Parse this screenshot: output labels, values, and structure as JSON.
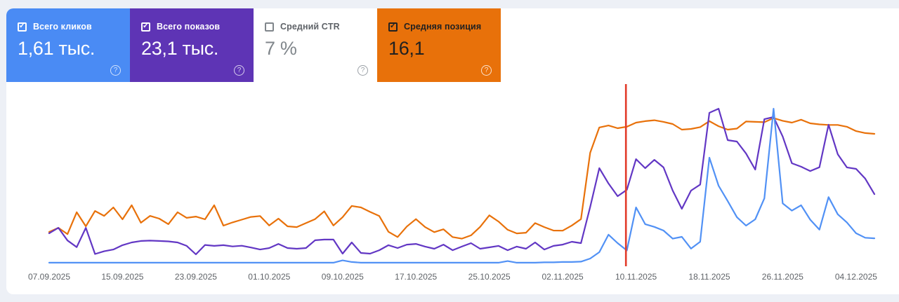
{
  "page": {
    "background": "#edf0f6",
    "panel_background": "#ffffff"
  },
  "icons": {
    "help": "?",
    "check": "✓"
  },
  "cards": [
    {
      "id": "clicks",
      "label": "Всего кликов",
      "value": "1,61 тыс.",
      "checked": true,
      "bg": "#4a8bf4",
      "text": "#ffffff",
      "checkbox_color": "#ffffff",
      "help_color": "rgba(255,255,255,0.75)"
    },
    {
      "id": "impressions",
      "label": "Всего показов",
      "value": "23,1 тыс.",
      "checked": true,
      "bg": "#5e34b5",
      "text": "#ffffff",
      "checkbox_color": "#ffffff",
      "help_color": "rgba(255,255,255,0.75)"
    },
    {
      "id": "ctr",
      "label": "Средний CTR",
      "value": "7 %",
      "checked": false,
      "bg": "#ffffff",
      "text": "#80868b",
      "checkbox_color": "#80868b",
      "help_color": "#9aa0a6",
      "label_color": "#5f6368"
    },
    {
      "id": "position",
      "label": "Средняя позиция",
      "value": "16,1",
      "checked": true,
      "bg": "#e8710a",
      "text": "#212121",
      "checkbox_color": "#212121",
      "help_color": "rgba(255,255,255,0.8)"
    }
  ],
  "chart_data": {
    "type": "line",
    "x_start": "07.09.2025",
    "x_end": "06.12.2025",
    "points_per_series": 91,
    "x_labels": [
      "07.09.2025",
      "15.09.2025",
      "23.09.2025",
      "01.10.2025",
      "09.10.2025",
      "17.10.2025",
      "25.10.2025",
      "02.11.2025",
      "10.11.2025",
      "18.11.2025",
      "26.11.2025",
      "04.12.2025"
    ],
    "y_note": "no y-axis labels visible in UI; values are percent of plot height (0 = bottom, 100 = top)",
    "legend_visible": false,
    "grid": false,
    "series": [
      {
        "name": "Средняя позиция",
        "color": "#e8710a",
        "values": [
          18.2,
          20.5,
          17.0,
          29.1,
          21.3,
          29.8,
          27.1,
          31.8,
          25.2,
          33.0,
          23.3,
          27.1,
          25.6,
          22.5,
          29.1,
          26.0,
          26.7,
          25.2,
          33.0,
          21.7,
          23.5,
          25.0,
          26.5,
          27.0,
          21.8,
          25.6,
          21.3,
          20.9,
          23.1,
          25.3,
          29.6,
          21.8,
          26.4,
          32.6,
          31.8,
          29.3,
          27.0,
          18.3,
          15.4,
          21.2,
          25.3,
          20.9,
          18.1,
          19.7,
          15.4,
          14.5,
          16.3,
          21.0,
          27.4,
          24.0,
          19.4,
          17.4,
          17.8,
          23.1,
          20.9,
          19.0,
          18.9,
          21.8,
          25.3,
          62.0,
          76.0,
          77.1,
          75.6,
          76.4,
          78.7,
          79.5,
          80.0,
          79.1,
          77.9,
          74.8,
          75.2,
          76.2,
          79.5,
          76.7,
          74.8,
          75.4,
          79.3,
          79.1,
          78.9,
          81.2,
          79.7,
          78.7,
          80.3,
          78.3,
          77.7,
          77.4,
          77.4,
          76.4,
          74.0,
          72.9,
          72.5
        ]
      },
      {
        "name": "Всего показов",
        "color": "#6237c4",
        "values": [
          17.5,
          20.5,
          13.5,
          9.8,
          20.5,
          6.0,
          7.5,
          8.5,
          10.9,
          12.4,
          13.2,
          13.4,
          13.2,
          13.0,
          12.4,
          10.5,
          5.8,
          11.0,
          10.5,
          10.9,
          10.2,
          10.6,
          9.6,
          8.5,
          9.3,
          11.6,
          9.3,
          8.9,
          9.3,
          13.6,
          14.0,
          14.0,
          6.2,
          12.4,
          6.6,
          6.2,
          8.1,
          10.9,
          9.3,
          11.2,
          11.6,
          10.1,
          8.9,
          11.2,
          8.1,
          10.1,
          12.0,
          8.9,
          9.7,
          10.5,
          8.1,
          10.1,
          8.9,
          12.4,
          8.5,
          10.5,
          11.2,
          12.8,
          12.0,
          32.0,
          53.5,
          45.0,
          38.0,
          41.5,
          58.5,
          53.5,
          58.1,
          53.9,
          41.1,
          31.0,
          41.1,
          44.4,
          84.1,
          86.4,
          69.0,
          68.2,
          61.6,
          52.7,
          80.6,
          81.8,
          71.0,
          56.2,
          54.3,
          51.9,
          54.0,
          77.5,
          61.2,
          53.9,
          53.1,
          47.7,
          39.1
        ]
      },
      {
        "name": "Всего кликов",
        "color": "#5191f5",
        "values": [
          1.2,
          1.2,
          1.2,
          1.2,
          1.2,
          1.2,
          1.2,
          1.2,
          1.2,
          1.2,
          1.2,
          1.2,
          1.2,
          1.2,
          1.2,
          1.2,
          1.2,
          1.2,
          1.2,
          1.2,
          1.2,
          1.2,
          1.2,
          1.2,
          1.2,
          1.2,
          1.2,
          1.2,
          1.2,
          1.2,
          1.2,
          1.2,
          2.5,
          1.6,
          1.2,
          1.2,
          1.2,
          1.2,
          1.2,
          1.2,
          1.2,
          1.2,
          1.2,
          1.2,
          1.2,
          1.2,
          1.2,
          1.2,
          1.2,
          1.2,
          2.1,
          1.2,
          1.2,
          1.2,
          1.4,
          1.4,
          1.6,
          1.6,
          1.8,
          3.5,
          7.0,
          16.7,
          12.0,
          8.0,
          31.8,
          22.5,
          21.0,
          19.0,
          14.5,
          15.5,
          9.0,
          12.8,
          59.3,
          43.8,
          35.3,
          26.4,
          21.7,
          25.2,
          36.8,
          86.4,
          34.0,
          30.0,
          33.0,
          25.0,
          19.5,
          37.5,
          28.0,
          23.5,
          17.5,
          15.0,
          14.7
        ]
      }
    ],
    "marker": {
      "type": "vertical-line",
      "color": "#e23c2b",
      "position_day_index": 62.9
    }
  }
}
